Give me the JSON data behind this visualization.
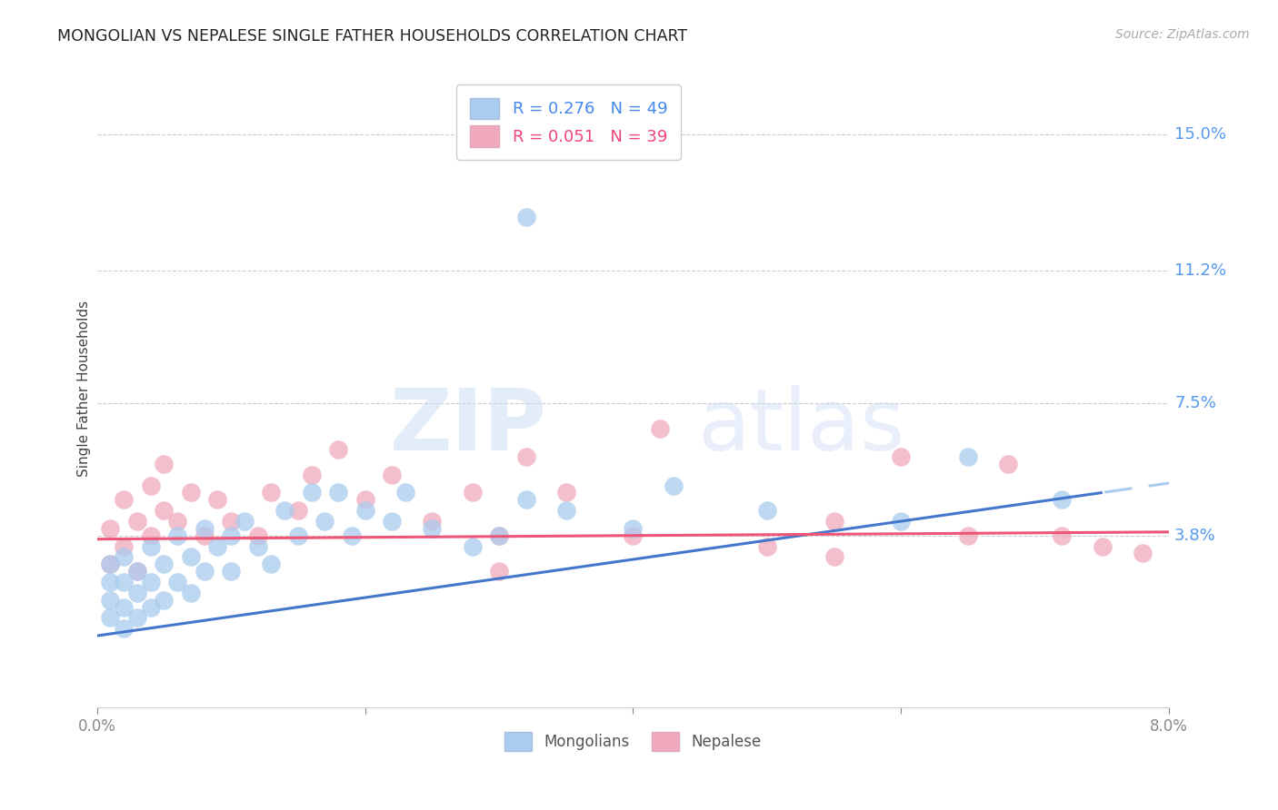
{
  "title": "MONGOLIAN VS NEPALESE SINGLE FATHER HOUSEHOLDS CORRELATION CHART",
  "source": "Source: ZipAtlas.com",
  "ylabel": "Single Father Households",
  "ytick_labels": [
    "15.0%",
    "11.2%",
    "7.5%",
    "3.8%"
  ],
  "ytick_values": [
    0.15,
    0.112,
    0.075,
    0.038
  ],
  "xlim": [
    0.0,
    0.08
  ],
  "ylim": [
    -0.01,
    0.168
  ],
  "mongolian_color": "#aaccee",
  "nepalese_color": "#f0aabc",
  "trend_mongolian_solid_color": "#4477cc",
  "trend_mongolian_dash_color": "#aaccee",
  "trend_nepalese_color": "#ee5577",
  "watermark_zip": "ZIP",
  "watermark_atlas": "atlas",
  "mongolian_x": [
    0.001,
    0.001,
    0.001,
    0.001,
    0.002,
    0.002,
    0.002,
    0.002,
    0.003,
    0.003,
    0.003,
    0.004,
    0.004,
    0.004,
    0.005,
    0.005,
    0.006,
    0.006,
    0.007,
    0.007,
    0.008,
    0.008,
    0.009,
    0.01,
    0.01,
    0.011,
    0.012,
    0.013,
    0.014,
    0.015,
    0.016,
    0.017,
    0.018,
    0.019,
    0.02,
    0.022,
    0.023,
    0.025,
    0.028,
    0.03,
    0.032,
    0.035,
    0.04,
    0.043,
    0.05,
    0.06,
    0.065,
    0.072,
    0.032
  ],
  "mongolian_y": [
    0.015,
    0.02,
    0.025,
    0.03,
    0.012,
    0.018,
    0.025,
    0.032,
    0.015,
    0.022,
    0.028,
    0.018,
    0.025,
    0.035,
    0.02,
    0.03,
    0.025,
    0.038,
    0.022,
    0.032,
    0.028,
    0.04,
    0.035,
    0.028,
    0.038,
    0.042,
    0.035,
    0.03,
    0.045,
    0.038,
    0.05,
    0.042,
    0.05,
    0.038,
    0.045,
    0.042,
    0.05,
    0.04,
    0.035,
    0.038,
    0.048,
    0.045,
    0.04,
    0.052,
    0.045,
    0.042,
    0.06,
    0.048,
    0.127
  ],
  "nepalese_x": [
    0.001,
    0.001,
    0.002,
    0.002,
    0.003,
    0.003,
    0.004,
    0.004,
    0.005,
    0.005,
    0.006,
    0.007,
    0.008,
    0.009,
    0.01,
    0.012,
    0.013,
    0.015,
    0.016,
    0.018,
    0.02,
    0.022,
    0.025,
    0.028,
    0.03,
    0.032,
    0.035,
    0.04,
    0.05,
    0.055,
    0.06,
    0.065,
    0.068,
    0.072,
    0.075,
    0.078,
    0.042,
    0.055,
    0.03
  ],
  "nepalese_y": [
    0.03,
    0.04,
    0.035,
    0.048,
    0.028,
    0.042,
    0.038,
    0.052,
    0.045,
    0.058,
    0.042,
    0.05,
    0.038,
    0.048,
    0.042,
    0.038,
    0.05,
    0.045,
    0.055,
    0.062,
    0.048,
    0.055,
    0.042,
    0.05,
    0.038,
    0.06,
    0.05,
    0.038,
    0.035,
    0.042,
    0.06,
    0.038,
    0.058,
    0.038,
    0.035,
    0.033,
    0.068,
    0.032,
    0.028
  ]
}
